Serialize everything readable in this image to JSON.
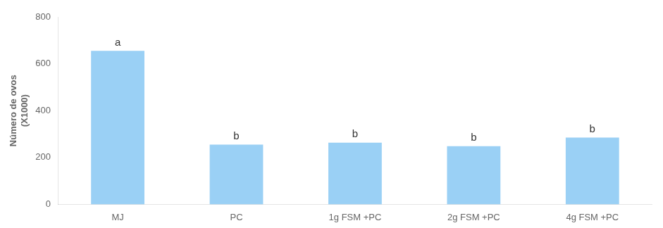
{
  "chart_data": {
    "type": "bar",
    "ylabel": "Número de ovos\n(X1000)",
    "categories": [
      "MJ",
      "PC",
      "1g FSM +PC",
      "2g FSM +PC",
      "4g FSM +PC"
    ],
    "values": [
      655,
      255,
      263,
      248,
      285
    ],
    "annotations": [
      "a",
      "b",
      "b",
      "b",
      "b"
    ],
    "ylim": [
      0,
      800
    ],
    "yticks": [
      0,
      200,
      400,
      600,
      800
    ],
    "grid": false
  }
}
